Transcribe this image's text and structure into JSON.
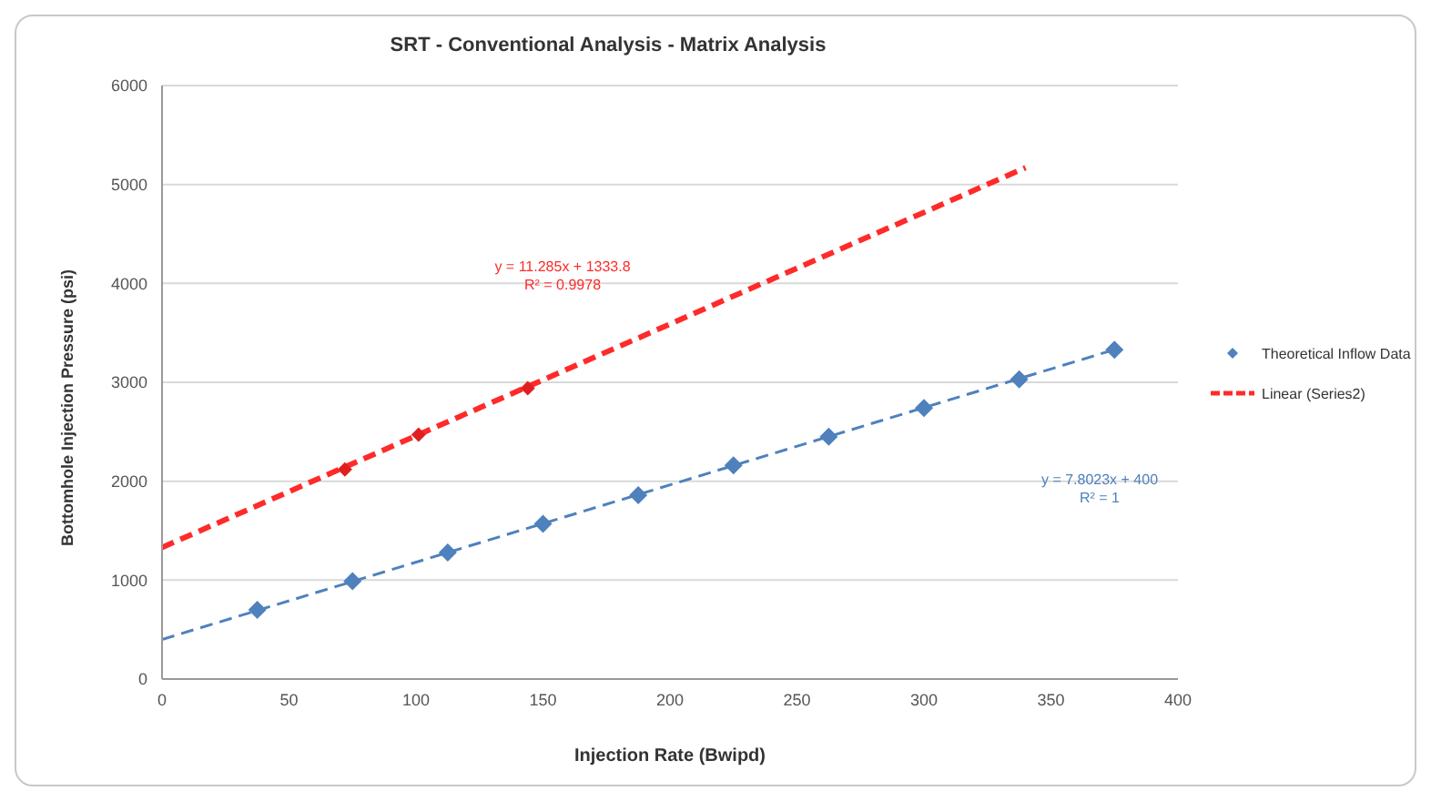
{
  "chart_data": {
    "type": "scatter",
    "title": "SRT - Conventional Analysis - Matrix Analysis",
    "xlabel": "Injection Rate (Bwipd)",
    "ylabel": "Bottomhole Injection Pressure (psi)",
    "xlim": [
      0,
      400
    ],
    "xticks": [
      0,
      50,
      100,
      150,
      200,
      250,
      300,
      350,
      400
    ],
    "ylim": [
      0,
      6000
    ],
    "yticks": [
      0,
      1000,
      2000,
      3000,
      4000,
      5000,
      6000
    ],
    "grid": "y",
    "legend": "right",
    "series": [
      {
        "name": "Theoretical Inflow Data",
        "marker": "diamond",
        "color": "#4f81bd",
        "x": [
          37.5,
          75,
          112.5,
          150,
          187.5,
          225,
          262.5,
          300,
          337.5,
          375
        ],
        "values": [
          700,
          990,
          1280,
          1570,
          1860,
          2160,
          2450,
          2740,
          3030,
          3330
        ]
      },
      {
        "name": "Linear (Series2)",
        "type": "line",
        "marker": "none",
        "line_style": "dashed",
        "color": "#ff2a2a",
        "x": [
          0,
          340
        ],
        "values": [
          1330,
          5170
        ]
      },
      {
        "marker": "diamond",
        "color": "#e02020",
        "x": [
          72,
          101,
          144
        ],
        "values": [
          2120,
          2470,
          2940
        ]
      },
      {
        "type": "line",
        "marker": "none",
        "line_style": "dashed",
        "color": "#4f81bd",
        "x": [
          0,
          375
        ],
        "values": [
          400,
          3330
        ]
      }
    ],
    "annotations": [
      "y = 11.285x + 1333.8\nR² = 0.9978",
      "y = 7.8023x + 400\nR² = 1"
    ]
  }
}
